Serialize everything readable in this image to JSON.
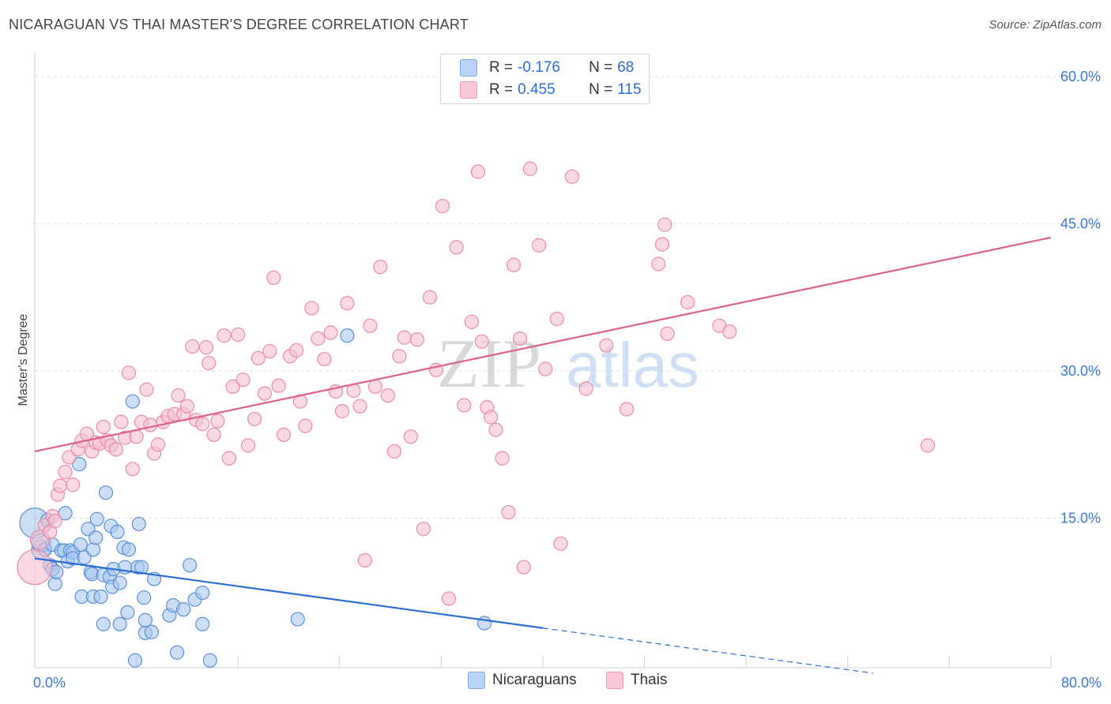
{
  "title": "NICARAGUAN VS THAI MASTER'S DEGREE CORRELATION CHART",
  "source": "Source: ZipAtlas.com",
  "watermark": {
    "zip": "ZIP",
    "atlas": "atlas"
  },
  "legend": {
    "r_label": "R =",
    "n_label": "N =",
    "rows": [
      {
        "r": "-0.176",
        "n": "68"
      },
      {
        "r": "0.455",
        "n": "115"
      }
    ]
  },
  "colors": {
    "blue_fill": "#a9c8f0",
    "blue_stroke": "#5b8fd6",
    "blue_line": "#2a6dd4",
    "pink_fill": "#f6bfd0",
    "pink_stroke": "#e88aa8",
    "pink_line": "#e0608c",
    "tick_text": "#3a78d4",
    "grid": "#dddddd"
  },
  "chart_data": {
    "type": "scatter",
    "ylabel": "Master's Degree",
    "xlim": [
      0,
      80
    ],
    "ylim": [
      0,
      60
    ],
    "x_tick_labels": [
      "0.0%",
      "80.0%"
    ],
    "y_ticks": [
      15,
      30,
      45,
      60
    ],
    "y_tick_labels": [
      "15.0%",
      "30.0%",
      "45.0%",
      "60.0%"
    ],
    "grid": "horizontal dashed",
    "legend_placement": "top-center",
    "series": [
      {
        "name": "Nicaraguans",
        "color": "#a9c8f0",
        "trend": {
          "x": [
            0,
            40,
            66
          ],
          "y": [
            10.9,
            3.8,
            -0.8
          ]
        },
        "points": [
          [
            0,
            14.5
          ],
          [
            0.5,
            11.8
          ],
          [
            0.5,
            12.5
          ],
          [
            0.8,
            11.8
          ],
          [
            1,
            14.8
          ],
          [
            1.2,
            10.2
          ],
          [
            1.4,
            9.8
          ],
          [
            1.4,
            12.3
          ],
          [
            1.6,
            8.3
          ],
          [
            1.7,
            9.5
          ],
          [
            2.1,
            11.7
          ],
          [
            2.4,
            15.5
          ],
          [
            2.3,
            11.7
          ],
          [
            2.6,
            10.6
          ],
          [
            2.8,
            11.7
          ],
          [
            3,
            11.5
          ],
          [
            3,
            10.9
          ],
          [
            3.5,
            20.5
          ],
          [
            3.6,
            12.3
          ],
          [
            3.7,
            7
          ],
          [
            3.9,
            11.0
          ],
          [
            4.2,
            13.9
          ],
          [
            4.4,
            9.5
          ],
          [
            4.5,
            9.3
          ],
          [
            4.6,
            11.8
          ],
          [
            4.6,
            7
          ],
          [
            4.8,
            13.0
          ],
          [
            4.9,
            14.9
          ],
          [
            5.2,
            7.0
          ],
          [
            5.4,
            9.2
          ],
          [
            5.4,
            4.2
          ],
          [
            5.6,
            17.6
          ],
          [
            5.9,
            9
          ],
          [
            6,
            14.2
          ],
          [
            6.1,
            8.0
          ],
          [
            6.2,
            9.8
          ],
          [
            6.5,
            13.6
          ],
          [
            6.7,
            8.4
          ],
          [
            6.7,
            4.2
          ],
          [
            7,
            12.0
          ],
          [
            7.1,
            10.0
          ],
          [
            7.3,
            5.4
          ],
          [
            7.4,
            11.8
          ],
          [
            7.7,
            26.9
          ],
          [
            7.9,
            0.5
          ],
          [
            8.1,
            10.0
          ],
          [
            8.2,
            14.4
          ],
          [
            8.4,
            10.0
          ],
          [
            8.6,
            6.9
          ],
          [
            8.7,
            3.3
          ],
          [
            8.7,
            4.6
          ],
          [
            9.2,
            3.4
          ],
          [
            9.4,
            8.8
          ],
          [
            10.6,
            5.1
          ],
          [
            10.9,
            6.1
          ],
          [
            11.2,
            1.3
          ],
          [
            11.7,
            5.7
          ],
          [
            12.2,
            10.2
          ],
          [
            12.6,
            6.7
          ],
          [
            13.2,
            7.4
          ],
          [
            13.2,
            4.2
          ],
          [
            13.8,
            0.5
          ],
          [
            20.7,
            4.7
          ],
          [
            24.6,
            33.6
          ],
          [
            35.4,
            4.3
          ]
        ]
      },
      {
        "name": "Thais",
        "color": "#f6bfd0",
        "trend": {
          "x": [
            0,
            80
          ],
          "y": [
            21.8,
            43.6
          ]
        },
        "points": [
          [
            0,
            10
          ],
          [
            0.4,
            12.8
          ],
          [
            0.8,
            14.3
          ],
          [
            1.2,
            13.6
          ],
          [
            1.4,
            15.2
          ],
          [
            1.6,
            14.7
          ],
          [
            1.8,
            17.4
          ],
          [
            2,
            18.3
          ],
          [
            2.4,
            19.7
          ],
          [
            2.7,
            21.2
          ],
          [
            3,
            18.4
          ],
          [
            3.4,
            22.0
          ],
          [
            3.7,
            22.9
          ],
          [
            4.1,
            23.6
          ],
          [
            4.5,
            21.8
          ],
          [
            4.8,
            22.7
          ],
          [
            5.1,
            22.6
          ],
          [
            5.4,
            24.3
          ],
          [
            5.7,
            22.9
          ],
          [
            6,
            22.4
          ],
          [
            6.4,
            22.0
          ],
          [
            6.8,
            24.8
          ],
          [
            7.1,
            23.2
          ],
          [
            7.4,
            29.8
          ],
          [
            7.7,
            20.0
          ],
          [
            8.0,
            23.3
          ],
          [
            8.4,
            24.8
          ],
          [
            8.8,
            28.1
          ],
          [
            9.1,
            24.5
          ],
          [
            9.4,
            21.6
          ],
          [
            9.7,
            22.5
          ],
          [
            10.1,
            24.8
          ],
          [
            10.5,
            25.4
          ],
          [
            11,
            25.6
          ],
          [
            11.3,
            27.5
          ],
          [
            11.7,
            25.6
          ],
          [
            12,
            26.4
          ],
          [
            12.4,
            32.5
          ],
          [
            12.7,
            25.0
          ],
          [
            13.2,
            24.6
          ],
          [
            13.5,
            32.4
          ],
          [
            13.7,
            30.8
          ],
          [
            14.1,
            23.5
          ],
          [
            14.4,
            24.9
          ],
          [
            14.9,
            33.6
          ],
          [
            15.3,
            21.1
          ],
          [
            15.6,
            28.4
          ],
          [
            16,
            33.7
          ],
          [
            16.4,
            29.1
          ],
          [
            16.8,
            22.4
          ],
          [
            17.3,
            25.1
          ],
          [
            17.6,
            31.3
          ],
          [
            18.1,
            27.7
          ],
          [
            18.5,
            32.0
          ],
          [
            18.8,
            39.5
          ],
          [
            19.2,
            28.5
          ],
          [
            19.6,
            23.5
          ],
          [
            20.1,
            31.5
          ],
          [
            20.6,
            32.1
          ],
          [
            20.9,
            26.9
          ],
          [
            21.3,
            24.4
          ],
          [
            21.8,
            36.4
          ],
          [
            22.3,
            33.3
          ],
          [
            22.8,
            31.2
          ],
          [
            23.3,
            33.9
          ],
          [
            23.7,
            27.9
          ],
          [
            24.2,
            25.9
          ],
          [
            24.6,
            36.9
          ],
          [
            25.1,
            28.0
          ],
          [
            25.6,
            26.4
          ],
          [
            26.0,
            10.7
          ],
          [
            26.4,
            34.6
          ],
          [
            26.8,
            28.4
          ],
          [
            27.2,
            40.6
          ],
          [
            27.8,
            27.5
          ],
          [
            28.3,
            21.8
          ],
          [
            28.7,
            31.5
          ],
          [
            29.1,
            33.4
          ],
          [
            29.6,
            23.3
          ],
          [
            30.1,
            33.2
          ],
          [
            30.6,
            13.9
          ],
          [
            31.1,
            37.5
          ],
          [
            31.6,
            30.1
          ],
          [
            32.1,
            46.8
          ],
          [
            32.6,
            6.8
          ],
          [
            33.2,
            42.6
          ],
          [
            33.8,
            26.5
          ],
          [
            34.4,
            35.0
          ],
          [
            34.9,
            50.3
          ],
          [
            35.2,
            33.0
          ],
          [
            35.6,
            26.3
          ],
          [
            35.9,
            25.3
          ],
          [
            36.3,
            24.0
          ],
          [
            36.8,
            21.1
          ],
          [
            37.3,
            15.6
          ],
          [
            37.7,
            40.8
          ],
          [
            38.2,
            33.3
          ],
          [
            38.5,
            10.0
          ],
          [
            39.0,
            50.6
          ],
          [
            39.7,
            42.8
          ],
          [
            40.2,
            30.2
          ],
          [
            41.1,
            35.3
          ],
          [
            41.4,
            12.4
          ],
          [
            42.3,
            49.8
          ],
          [
            43.4,
            28.2
          ],
          [
            45.0,
            32.6
          ],
          [
            46.6,
            26.1
          ],
          [
            49.1,
            40.9
          ],
          [
            49.4,
            42.9
          ],
          [
            49.6,
            44.9
          ],
          [
            49.8,
            33.8
          ],
          [
            51.4,
            37.0
          ],
          [
            53.9,
            34.6
          ],
          [
            54.7,
            34.0
          ],
          [
            70.3,
            22.4
          ]
        ]
      }
    ]
  },
  "bottom_legend": [
    {
      "label": "Nicaraguans"
    },
    {
      "label": "Thais"
    }
  ]
}
